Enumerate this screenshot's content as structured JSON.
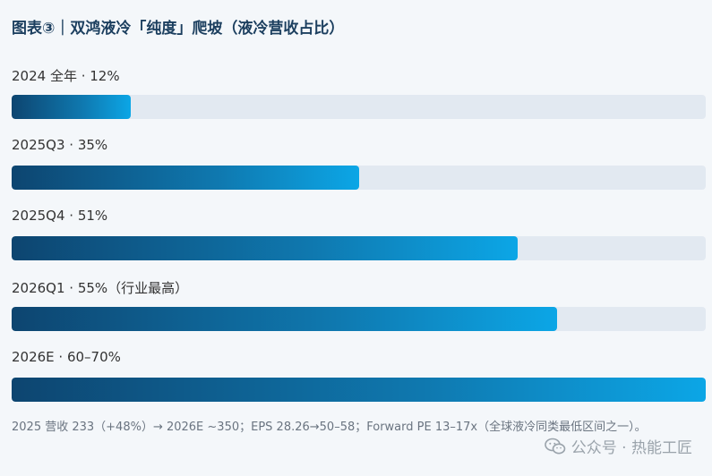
{
  "header": {
    "title": "图表③｜双鸿液冷「纯度」爬坡（液冷营收占比）"
  },
  "chart_data": {
    "type": "bar",
    "orientation": "horizontal",
    "title": "图表③｜双鸿液冷「纯度」爬坡（液冷营收占比）",
    "xlim": [
      0,
      100
    ],
    "unit": "%",
    "bars": [
      {
        "label": "2024 全年 · 12%",
        "category": "2024 全年",
        "value": 12
      },
      {
        "label": "2025Q3 · 35%",
        "category": "2025Q3",
        "value": 35
      },
      {
        "label": "2025Q4 · 51%",
        "category": "2025Q4",
        "value": 51
      },
      {
        "label": "2026Q1 · 55%（行业最高）",
        "category": "2026Q1",
        "value": 55
      },
      {
        "label": "2026E · 60–70%",
        "category": "2026E",
        "value": 70,
        "range": [
          60,
          70
        ]
      }
    ]
  },
  "footnote": "2025 营收 233（+48%）→ 2026E ~350；EPS 28.26→50–58；Forward PE 13–17x（全球液冷同类最低区间之一）。",
  "watermark": {
    "icon": "wechat-icon",
    "text": "公众号 · 热能工匠"
  }
}
